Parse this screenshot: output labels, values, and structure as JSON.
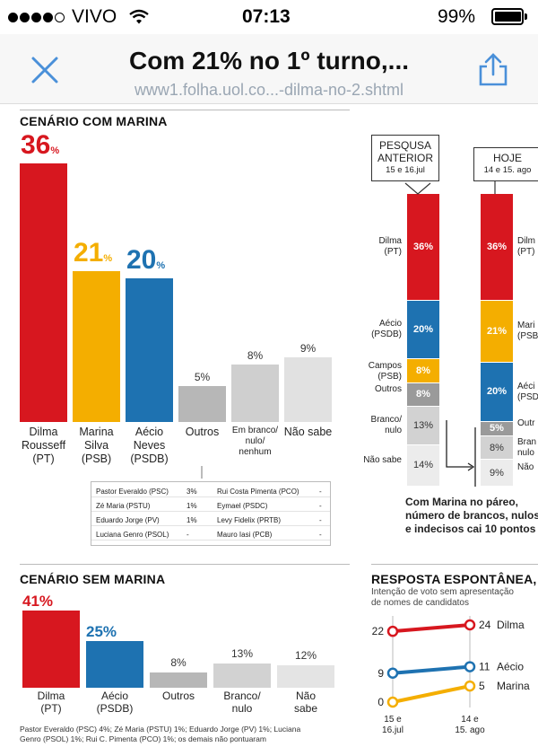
{
  "status_bar": {
    "carrier": "VIVO",
    "time": "07:13",
    "battery": "99%"
  },
  "header": {
    "title": "Com 21% no 1º turno,...",
    "url": "www1.folha.uol.co...-dilma-no-2.shtml"
  },
  "cenario_com_marina": {
    "title": "CENÁRIO COM MARINA",
    "bars": [
      {
        "label": "Dilma\nRousseff\n(PT)",
        "value": 36,
        "big": "36",
        "color": "#d7171f"
      },
      {
        "label": "Marina\nSilva\n(PSB)",
        "value": 21,
        "big": "21",
        "color": "#f4ae00"
      },
      {
        "label": "Aécio\nNeves\n(PSDB)",
        "value": 20,
        "big": "20",
        "color": "#1e72b1"
      },
      {
        "label": "Outros",
        "value": 5,
        "small": "5%",
        "color": "#b7b7b7"
      },
      {
        "label": "Em branco/\nnulo/\nnenhum",
        "value": 8,
        "small": "8%",
        "color": "#cfcfcf"
      },
      {
        "label": "Não sabe",
        "value": 9,
        "small": "9%",
        "color": "#e1e1e1"
      }
    ],
    "pct_suffix": "%",
    "others_table": [
      {
        "name": "Pastor Everaldo (PSC)",
        "value": "3%",
        "name2": "Rui Costa Pimenta (PCO)",
        "value2": "-"
      },
      {
        "name": "Zé Maria (PSTU)",
        "value": "1%",
        "name2": "Eymael (PSDC)",
        "value2": "-"
      },
      {
        "name": "Eduardo Jorge (PV)",
        "value": "1%",
        "name2": "Levy Fidelix (PRTB)",
        "value2": "-"
      },
      {
        "name": "Luciana Genro (PSOL)",
        "value": "-",
        "name2": "Mauro Iasi (PCB)",
        "value2": "-"
      }
    ]
  },
  "comparison": {
    "previous_header": "PESQUSA\nANTERIOR",
    "previous_date": "15 e 16.jul",
    "today_header": "HOJE",
    "today_date": "14 e 15. ago",
    "previous": [
      {
        "label": "Dilma\n(PT)",
        "value": 36,
        "text": "36%",
        "color": "#d7171f"
      },
      {
        "label": "Aécio\n(PSDB)",
        "value": 20,
        "text": "20%",
        "color": "#1e72b1"
      },
      {
        "label": "Campos\n(PSB)",
        "value": 8,
        "text": "8%",
        "color": "#f4ae00"
      },
      {
        "label": "Outros",
        "value": 8,
        "text": "8%",
        "color": "#9a9a9a"
      },
      {
        "label": "Branco/\nnulo",
        "value": 13,
        "text": "13%",
        "color": "#d2d2d2"
      },
      {
        "label": "Não sabe",
        "value": 14,
        "text": "14%",
        "color": "#ececec"
      }
    ],
    "today": [
      {
        "label": "Dilm\n(PT)",
        "value": 36,
        "text": "36%",
        "color": "#d7171f"
      },
      {
        "label": "Mari\n(PSB",
        "value": 21,
        "text": "21%",
        "color": "#f4ae00"
      },
      {
        "label": "Aéci\n(PSD",
        "value": 20,
        "text": "20%",
        "color": "#1e72b1"
      },
      {
        "label": "Outr",
        "value": 5,
        "text": "5%",
        "color": "#9a9a9a"
      },
      {
        "label": "Bran\nnulo",
        "value": 8,
        "text": "8%",
        "color": "#d2d2d2"
      },
      {
        "label": "Não",
        "value": 9,
        "text": "9%",
        "color": "#ececec"
      }
    ],
    "note": "Com Marina no páreo,\nnúmero de brancos, nulos\ne indecisos cai 10 pontos"
  },
  "cenario_sem_marina": {
    "title": "CENÁRIO SEM MARINA",
    "bars": [
      {
        "label": "Dilma\n(PT)",
        "value": 41,
        "big": "41%",
        "color": "#d7171f"
      },
      {
        "label": "Aécio\n(PSDB)",
        "value": 25,
        "big": "25%",
        "color": "#1e72b1"
      },
      {
        "label": "Outros",
        "value": 8,
        "small": "8%",
        "color": "#b7b7b7"
      },
      {
        "label": "Branco/\nnulo",
        "value": 13,
        "small": "13%",
        "color": "#d2d2d2"
      },
      {
        "label": "Não\nsabe",
        "value": 12,
        "small": "12%",
        "color": "#e4e4e4"
      }
    ],
    "footnote": "Pastor Everaldo (PSC) 4%; Zé Maria (PSTU) 1%; Eduardo Jorge (PV) 1%; Luciana\nGenro (PSOL) 1%; Rui C. Pimenta (PCO) 1%; os demais não pontuaram"
  },
  "chart_data": {
    "type": "line",
    "title": "RESPOSTA ESPONTÂNEA, EM",
    "subtitle": "Intenção de voto sem apresentação\nde nomes de candidatos",
    "x": [
      "15 e\n16.jul",
      "14 e\n15. ago"
    ],
    "series": [
      {
        "name": "Dilma",
        "values": [
          22,
          24
        ],
        "color": "#d7171f"
      },
      {
        "name": "Aécio",
        "values": [
          9,
          11
        ],
        "color": "#1e72b1"
      },
      {
        "name": "Marina",
        "values": [
          0,
          5
        ],
        "color": "#f4ae00"
      }
    ],
    "ylim": [
      0,
      24
    ]
  }
}
